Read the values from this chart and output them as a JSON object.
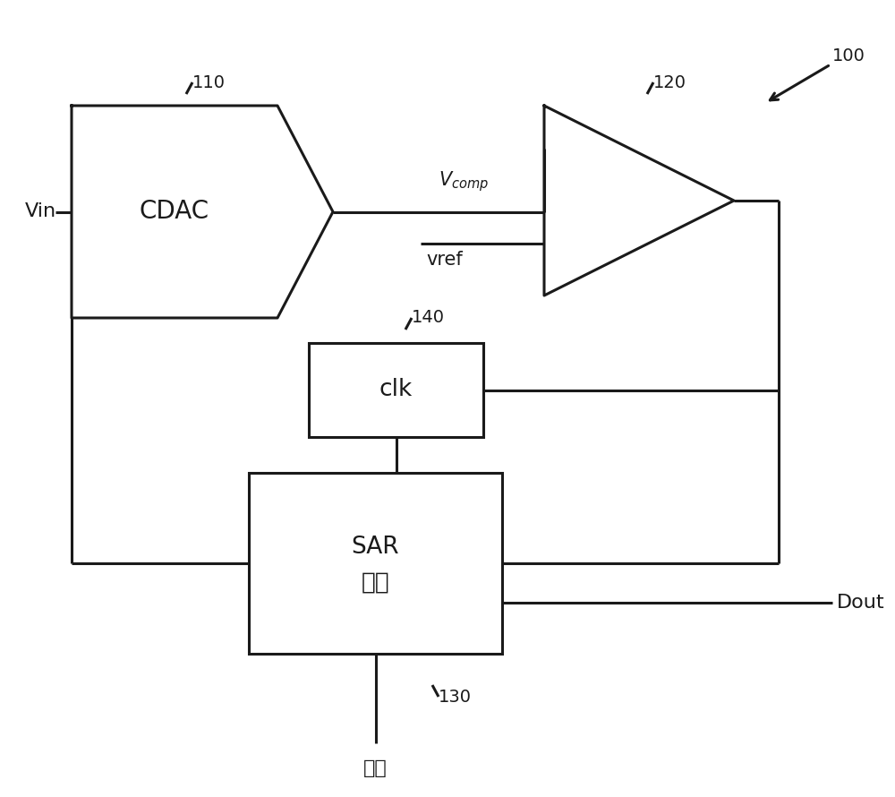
{
  "bg_color": "#ffffff",
  "line_color": "#1a1a1a",
  "line_width": 2.2,
  "font_color": "#1a1a1a",
  "cdac_label": "CDAC",
  "cdac_ref": "110",
  "clk_label": "clk",
  "clk_ref": "140",
  "sar_label1": "SAR",
  "sar_label2": "逻辑",
  "sar_ref": "130",
  "comp_ref": "120",
  "global_ref": "100",
  "vin_label": "Vin",
  "vcomp_label": "$V_{comp}$",
  "vref_label": "vref",
  "dout_label": "Dout",
  "start_label": "开始"
}
